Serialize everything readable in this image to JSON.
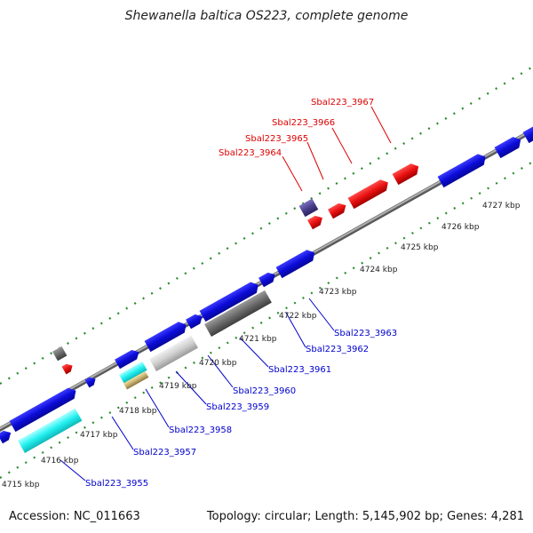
{
  "title": "Shewanella baltica OS223, complete genome",
  "footer": {
    "accession": "Accession: NC_011663",
    "stats": "Topology: circular; Length: 5,145,902 bp; Genes: 4,281"
  },
  "colors": {
    "forward_gene": "#1010e0",
    "highlight_gene": "#ee1111",
    "label_blue": "#0000cc",
    "label_red": "#dd0000",
    "backbone": "#8c8c8c",
    "tick_green": "#2a8a2a",
    "dark_purple": "#4a3f8a",
    "cyan": "#22f0f0",
    "gray_dark": "#6a6a6a",
    "gray_light": "#cfcfcf",
    "tan": "#c8b070"
  },
  "scale_labels": [
    "4715 kbp",
    "4716 kbp",
    "4717 kbp",
    "4718 kbp",
    "4719 kbp",
    "4720 kbp",
    "4721 kbp",
    "4722 kbp",
    "4723 kbp",
    "4724 kbp",
    "4725 kbp",
    "4726 kbp",
    "4727 kbp"
  ],
  "gene_labels_bottom": [
    "Sbal223_3955",
    "Sbal223_3957",
    "Sbal223_3958",
    "Sbal223_3959",
    "Sbal223_3960",
    "Sbal223_3961",
    "Sbal223_3962",
    "Sbal223_3963"
  ],
  "gene_labels_top": [
    "Sbal223_3964",
    "Sbal223_3965",
    "Sbal223_3966",
    "Sbal223_3967"
  ]
}
